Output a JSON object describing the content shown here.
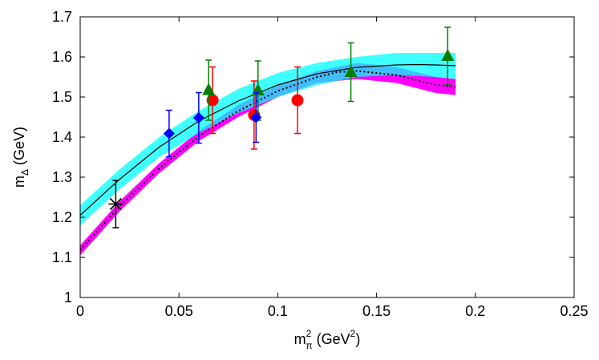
{
  "chart_data": {
    "type": "scatter",
    "xlabel": {
      "main": "m",
      "sub": "π",
      "sup": "2",
      "units_pre": " (GeV",
      "units_sup": "2",
      "units_post": ")"
    },
    "ylabel": {
      "main": "m",
      "sub": "Δ",
      "units": " (GeV)"
    },
    "xlim": [
      0,
      0.25
    ],
    "ylim": [
      1.0,
      1.7
    ],
    "xticks": [
      0,
      0.05,
      0.1,
      0.15,
      0.2,
      0.25
    ],
    "xtick_labels": [
      "0",
      "0.05",
      "0.1",
      "0.15",
      "0.2",
      "0.25"
    ],
    "yticks": [
      1.0,
      1.1,
      1.2,
      1.3,
      1.4,
      1.5,
      1.6,
      1.7
    ],
    "ytick_labels": [
      "1",
      "1.1",
      "1.2",
      "1.3",
      "1.4",
      "1.5",
      "1.6",
      "1.7"
    ],
    "grid": false,
    "bands": [
      {
        "color": "#ff00ff",
        "x": [
          0,
          0.02,
          0.04,
          0.06,
          0.08,
          0.1,
          0.12,
          0.14,
          0.16,
          0.18,
          0.19
        ],
        "lower": [
          1.105,
          1.215,
          1.31,
          1.39,
          1.45,
          1.5,
          1.535,
          1.545,
          1.535,
          1.51,
          1.505
        ],
        "upper": [
          1.13,
          1.24,
          1.335,
          1.415,
          1.48,
          1.53,
          1.565,
          1.585,
          1.575,
          1.55,
          1.545
        ]
      },
      {
        "color": "#00ffff",
        "x": [
          0,
          0.02,
          0.04,
          0.06,
          0.08,
          0.1,
          0.12,
          0.14,
          0.16,
          0.18,
          0.19
        ],
        "lower": [
          1.18,
          1.27,
          1.35,
          1.41,
          1.46,
          1.5,
          1.53,
          1.55,
          1.555,
          1.55,
          1.545
        ],
        "upper": [
          1.23,
          1.32,
          1.4,
          1.465,
          1.52,
          1.56,
          1.585,
          1.6,
          1.61,
          1.61,
          1.61
        ]
      }
    ],
    "curves": [
      {
        "style": "solid",
        "color": "#000000",
        "x": [
          0,
          0.02,
          0.04,
          0.06,
          0.08,
          0.1,
          0.12,
          0.14,
          0.16,
          0.17,
          0.18,
          0.19
        ],
        "y": [
          1.205,
          1.295,
          1.375,
          1.44,
          1.49,
          1.53,
          1.558,
          1.574,
          1.58,
          1.581,
          1.58,
          1.578
        ]
      },
      {
        "style": "dotted",
        "color": "#000000",
        "x": [
          0,
          0.02,
          0.04,
          0.06,
          0.08,
          0.1,
          0.12,
          0.13,
          0.14,
          0.16,
          0.18,
          0.19
        ],
        "y": [
          1.118,
          1.228,
          1.322,
          1.402,
          1.465,
          1.515,
          1.55,
          1.562,
          1.565,
          1.555,
          1.53,
          1.525
        ]
      }
    ],
    "series": [
      {
        "marker": "circle",
        "color": "#ff0000",
        "x": [
          0.067,
          0.088,
          0.11
        ],
        "y": [
          1.492,
          1.455,
          1.492
        ],
        "yerr": [
          0.083,
          0.085,
          0.083
        ]
      },
      {
        "marker": "triangle",
        "color": "#008000",
        "x": [
          0.065,
          0.09,
          0.137,
          0.186
        ],
        "y": [
          1.517,
          1.516,
          1.562,
          1.602
        ],
        "yerr": [
          0.075,
          0.074,
          0.073,
          0.072
        ]
      },
      {
        "marker": "diamond",
        "color": "#0000ff",
        "x": [
          0.045,
          0.06,
          0.089
        ],
        "y": [
          1.409,
          1.448,
          1.449
        ],
        "yerr": [
          0.058,
          0.063,
          0.062
        ]
      },
      {
        "marker": "star",
        "color": "#000000",
        "x": [
          0.018
        ],
        "y": [
          1.233
        ],
        "yerr": [
          0.059
        ]
      }
    ]
  }
}
